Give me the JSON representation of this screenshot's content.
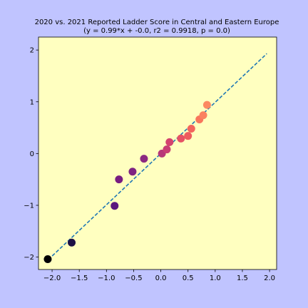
{
  "chart_data": {
    "type": "scatter",
    "title": "2020 vs. 2021 Reported Ladder Score in Central and Eastern Europe",
    "subtitle": "(y = 0.99*x + -0.0, r2 = 0.9918, p = 0.0)",
    "xlabel": "",
    "ylabel": "",
    "xlim": [
      -2.25,
      2.13
    ],
    "ylim": [
      -2.24,
      2.25
    ],
    "xticks": [
      -2.0,
      -1.5,
      -1.0,
      -0.5,
      0.0,
      0.5,
      1.0,
      1.5,
      2.0
    ],
    "yticks": [
      -2,
      -1,
      0,
      1,
      2
    ],
    "xtick_labels": [
      "−2.0",
      "−1.5",
      "−1.0",
      "−0.5",
      "0.0",
      "0.5",
      "1.0",
      "1.5",
      "2.0"
    ],
    "ytick_labels": [
      "−2",
      "−1",
      "0",
      "1",
      "2"
    ],
    "grid": false,
    "plot_background": "#ffffc0",
    "figure_background": "#c0c4ff",
    "fit_line": {
      "slope": 0.99,
      "intercept": 0.0,
      "x_range": [
        -2.07,
        1.95
      ],
      "color": "#1f77b4",
      "style": "dashed"
    },
    "points": [
      {
        "x": -2.08,
        "y": -2.04,
        "color": "#000004"
      },
      {
        "x": -1.64,
        "y": -1.72,
        "color": "#1c1044"
      },
      {
        "x": -0.85,
        "y": -1.01,
        "color": "#5a167e"
      },
      {
        "x": -0.77,
        "y": -0.5,
        "color": "#781c81"
      },
      {
        "x": -0.52,
        "y": -0.35,
        "color": "#7d2382"
      },
      {
        "x": -0.31,
        "y": -0.1,
        "color": "#8c2981"
      },
      {
        "x": 0.02,
        "y": 0.0,
        "color": "#b73779"
      },
      {
        "x": 0.11,
        "y": 0.08,
        "color": "#c83e73"
      },
      {
        "x": 0.16,
        "y": 0.22,
        "color": "#d3436e"
      },
      {
        "x": 0.37,
        "y": 0.29,
        "color": "#e65164"
      },
      {
        "x": 0.5,
        "y": 0.34,
        "color": "#ee5b5e"
      },
      {
        "x": 0.56,
        "y": 0.48,
        "color": "#f3655c"
      },
      {
        "x": 0.71,
        "y": 0.66,
        "color": "#f8765c"
      },
      {
        "x": 0.78,
        "y": 0.74,
        "color": "#fa8160"
      },
      {
        "x": 0.85,
        "y": 0.94,
        "color": "#fc8961"
      }
    ]
  }
}
